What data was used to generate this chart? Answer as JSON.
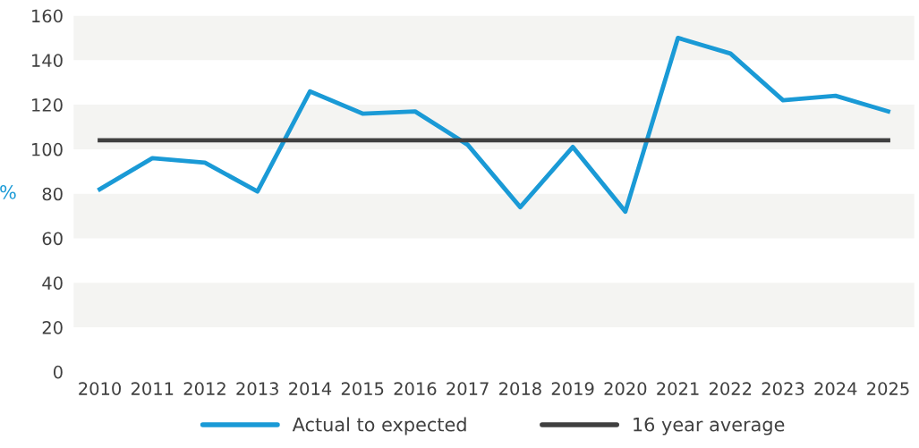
{
  "chart_data": {
    "type": "line",
    "ylabel": "%",
    "categories": [
      "2010",
      "2011",
      "2012",
      "2013",
      "2014",
      "2015",
      "2016",
      "2017",
      "2018",
      "2019",
      "2020",
      "2021",
      "2022",
      "2023",
      "2024",
      "2025"
    ],
    "series": [
      {
        "name": "Actual to expected",
        "color": "#1a9ad6",
        "values": [
          82,
          96,
          94,
          81,
          126,
          116,
          117,
          102,
          74,
          101,
          72,
          150,
          143,
          122,
          124,
          117
        ]
      },
      {
        "name": "16 year average",
        "color": "#404040",
        "values": [
          104,
          104,
          104,
          104,
          104,
          104,
          104,
          104,
          104,
          104,
          104,
          104,
          104,
          104,
          104,
          104
        ]
      }
    ],
    "bands": [
      {
        "axis": "y",
        "from": 20,
        "to": 40,
        "color": "#f4f4f2"
      },
      {
        "axis": "y",
        "from": 60,
        "to": 80,
        "color": "#f4f4f2"
      },
      {
        "axis": "y",
        "from": 100,
        "to": 120,
        "color": "#f4f4f2"
      },
      {
        "axis": "y",
        "from": 140,
        "to": 160,
        "color": "#f4f4f2"
      }
    ],
    "ylim": [
      0,
      160
    ],
    "yticks": [
      0,
      20,
      40,
      60,
      80,
      100,
      120,
      140,
      160
    ],
    "grid": false,
    "legend": "bottom",
    "marker": "none",
    "line_style": "solid"
  }
}
